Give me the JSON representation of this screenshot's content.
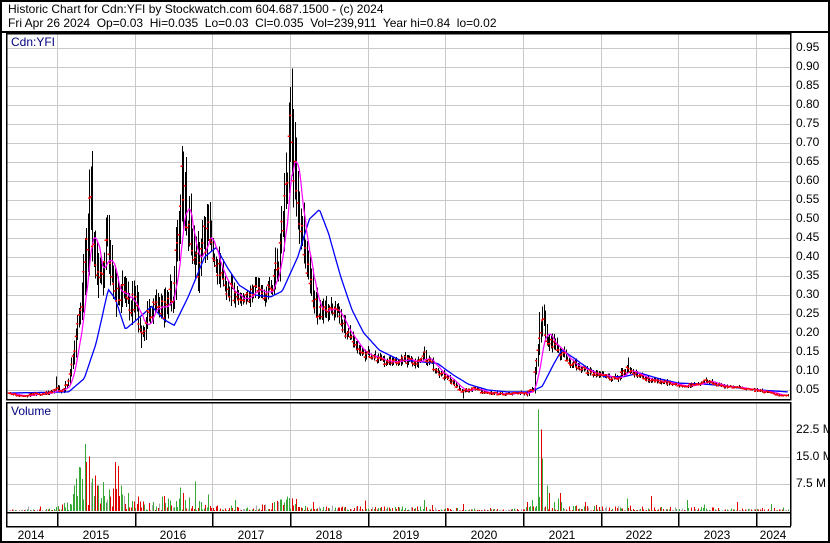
{
  "header": {
    "line1": "Historic Chart for Cdn:YFI by Stockwatch.com 604.687.1500 - (c) 2024",
    "line2": "Fri Apr 26 2024  Op=0.03  Hi=0.035  Lo=0.03  Cl=0.035  Vol=239,911  Year hi=0.84  lo=0.02"
  },
  "price_panel": {
    "label": "Cdn:YFI"
  },
  "volume_panel": {
    "label": "Volume"
  },
  "colors": {
    "grid": "#c9c9c9",
    "bar": "#000000",
    "close_tick": "#ff0000",
    "short_ma": "#ff00ff",
    "long_ma": "#0000ff",
    "vol_up": "#35a835",
    "vol_down": "#e00000",
    "vol_neutral": "#a8a8a8",
    "label": "#000080"
  },
  "chart_data": {
    "type": "candlestick",
    "title": "Historic Chart for Cdn:YFI",
    "symbol": "Cdn:YFI",
    "ohlc_summary": {
      "date": "Fri Apr 26 2024",
      "open": 0.03,
      "high": 0.035,
      "low": 0.03,
      "close": 0.035,
      "volume": "239,911",
      "year_hi": 0.84,
      "year_lo": 0.02
    },
    "x_axis": {
      "labels": [
        "2014",
        "2015",
        "2016",
        "2017",
        "2018",
        "2019",
        "2020",
        "2021",
        "2022",
        "2023",
        "2024"
      ],
      "range": [
        2014.37,
        2024.42
      ]
    },
    "price_axis": {
      "tick_values": [
        0.95,
        0.9,
        0.85,
        0.8,
        0.75,
        0.7,
        0.65,
        0.6,
        0.55,
        0.5,
        0.45,
        0.4,
        0.35,
        0.3,
        0.25,
        0.2,
        0.15,
        0.1,
        0.05
      ],
      "tick_labels": [
        "0.95",
        "0.90",
        "0.85",
        "0.80",
        "0.75",
        "0.70",
        "0.65",
        "0.60",
        "0.55",
        "0.50",
        "0.45",
        "0.40",
        "0.35",
        "0.30",
        "0.25",
        "0.20",
        "0.15",
        "0.10",
        "0.05"
      ]
    },
    "volume_axis": {
      "tick_values": [
        22.5,
        15.0,
        7.5
      ],
      "tick_labels": [
        "22.5 M",
        "15.0 M",
        "7.5 M"
      ],
      "unit": "millions of shares"
    },
    "close_keypoints": [
      [
        2014.37,
        0.04
      ],
      [
        2014.55,
        0.035
      ],
      [
        2014.75,
        0.04
      ],
      [
        2014.9,
        0.042
      ],
      [
        2014.99,
        0.055
      ],
      [
        2015.06,
        0.047
      ],
      [
        2015.14,
        0.065
      ],
      [
        2015.19,
        0.13
      ],
      [
        2015.24,
        0.2
      ],
      [
        2015.3,
        0.27
      ],
      [
        2015.35,
        0.33
      ],
      [
        2015.4,
        0.45
      ],
      [
        2015.42,
        0.58
      ],
      [
        2015.46,
        0.42
      ],
      [
        2015.51,
        0.35
      ],
      [
        2015.58,
        0.4
      ],
      [
        2015.63,
        0.42
      ],
      [
        2015.71,
        0.32
      ],
      [
        2015.79,
        0.28
      ],
      [
        2015.86,
        0.3
      ],
      [
        2015.94,
        0.27
      ],
      [
        2016.0,
        0.28
      ],
      [
        2016.09,
        0.2
      ],
      [
        2016.2,
        0.26
      ],
      [
        2016.29,
        0.28
      ],
      [
        2016.39,
        0.26
      ],
      [
        2016.48,
        0.3
      ],
      [
        2016.55,
        0.42
      ],
      [
        2016.58,
        0.55
      ],
      [
        2016.62,
        0.6
      ],
      [
        2016.67,
        0.5
      ],
      [
        2016.74,
        0.44
      ],
      [
        2016.82,
        0.38
      ],
      [
        2016.89,
        0.44
      ],
      [
        2016.96,
        0.46
      ],
      [
        2017.02,
        0.4
      ],
      [
        2017.1,
        0.35
      ],
      [
        2017.19,
        0.32
      ],
      [
        2017.29,
        0.3
      ],
      [
        2017.41,
        0.29
      ],
      [
        2017.54,
        0.31
      ],
      [
        2017.67,
        0.3
      ],
      [
        2017.77,
        0.33
      ],
      [
        2017.85,
        0.38
      ],
      [
        2017.91,
        0.5
      ],
      [
        2017.96,
        0.65
      ],
      [
        2018.0,
        0.7
      ],
      [
        2018.05,
        0.63
      ],
      [
        2018.1,
        0.55
      ],
      [
        2018.15,
        0.48
      ],
      [
        2018.22,
        0.38
      ],
      [
        2018.28,
        0.31
      ],
      [
        2018.35,
        0.26
      ],
      [
        2018.44,
        0.25
      ],
      [
        2018.58,
        0.26
      ],
      [
        2018.73,
        0.2
      ],
      [
        2018.93,
        0.15
      ],
      [
        2019.12,
        0.13
      ],
      [
        2019.31,
        0.12
      ],
      [
        2019.51,
        0.13
      ],
      [
        2019.64,
        0.12
      ],
      [
        2019.73,
        0.14
      ],
      [
        2019.89,
        0.1
      ],
      [
        2020.09,
        0.07
      ],
      [
        2020.22,
        0.045
      ],
      [
        2020.34,
        0.055
      ],
      [
        2020.47,
        0.045
      ],
      [
        2020.67,
        0.04
      ],
      [
        2020.86,
        0.04
      ],
      [
        2021.05,
        0.04
      ],
      [
        2021.13,
        0.05
      ],
      [
        2021.18,
        0.15
      ],
      [
        2021.22,
        0.21
      ],
      [
        2021.26,
        0.22
      ],
      [
        2021.31,
        0.19
      ],
      [
        2021.37,
        0.17
      ],
      [
        2021.48,
        0.15
      ],
      [
        2021.63,
        0.12
      ],
      [
        2021.82,
        0.1
      ],
      [
        2022.02,
        0.085
      ],
      [
        2022.21,
        0.08
      ],
      [
        2022.33,
        0.105
      ],
      [
        2022.4,
        0.1
      ],
      [
        2022.47,
        0.09
      ],
      [
        2022.66,
        0.075
      ],
      [
        2022.85,
        0.07
      ],
      [
        2023.05,
        0.06
      ],
      [
        2023.24,
        0.065
      ],
      [
        2023.37,
        0.075
      ],
      [
        2023.56,
        0.06
      ],
      [
        2023.75,
        0.055
      ],
      [
        2023.95,
        0.05
      ],
      [
        2024.14,
        0.045
      ],
      [
        2024.32,
        0.035
      ],
      [
        2024.42,
        0.035
      ]
    ],
    "high_wicks": [
      [
        2014.99,
        0.085
      ],
      [
        2015.42,
        0.63
      ],
      [
        2015.63,
        0.47
      ],
      [
        2016.62,
        0.655
      ],
      [
        2016.96,
        0.52
      ],
      [
        2018.0,
        0.845
      ],
      [
        2018.05,
        0.79
      ],
      [
        2019.73,
        0.165
      ],
      [
        2021.2,
        0.255
      ],
      [
        2021.24,
        0.27
      ],
      [
        2022.35,
        0.135
      ]
    ],
    "low_wicks": [
      [
        2020.23,
        0.02
      ],
      [
        2016.09,
        0.16
      ]
    ],
    "volatility_keypoints": [
      [
        2014.4,
        0.1
      ],
      [
        2014.97,
        0.16
      ],
      [
        2015.15,
        0.22
      ],
      [
        2015.35,
        0.3
      ],
      [
        2015.6,
        0.25
      ],
      [
        2015.9,
        0.18
      ],
      [
        2016.2,
        0.15
      ],
      [
        2016.6,
        0.22
      ],
      [
        2016.95,
        0.16
      ],
      [
        2017.3,
        0.1
      ],
      [
        2017.7,
        0.1
      ],
      [
        2018.0,
        0.2
      ],
      [
        2018.3,
        0.14
      ],
      [
        2018.8,
        0.12
      ],
      [
        2019.5,
        0.13
      ],
      [
        2020.3,
        0.14
      ],
      [
        2020.8,
        0.1
      ],
      [
        2021.2,
        0.22
      ],
      [
        2021.6,
        0.12
      ],
      [
        2022.3,
        0.13
      ],
      [
        2023.0,
        0.1
      ],
      [
        2024.0,
        0.1
      ],
      [
        2024.42,
        0.1
      ]
    ],
    "blue_ma_keypoints": [
      [
        2014.37,
        0.042
      ],
      [
        2015.15,
        0.045
      ],
      [
        2015.35,
        0.08
      ],
      [
        2015.5,
        0.17
      ],
      [
        2015.6,
        0.26
      ],
      [
        2015.66,
        0.315
      ],
      [
        2015.75,
        0.29
      ],
      [
        2015.88,
        0.21
      ],
      [
        2016.0,
        0.23
      ],
      [
        2016.22,
        0.27
      ],
      [
        2016.38,
        0.235
      ],
      [
        2016.51,
        0.22
      ],
      [
        2016.7,
        0.3
      ],
      [
        2016.9,
        0.4
      ],
      [
        2017.05,
        0.425
      ],
      [
        2017.2,
        0.37
      ],
      [
        2017.35,
        0.325
      ],
      [
        2017.55,
        0.3
      ],
      [
        2017.75,
        0.295
      ],
      [
        2017.9,
        0.31
      ],
      [
        2018.1,
        0.4
      ],
      [
        2018.25,
        0.5
      ],
      [
        2018.38,
        0.525
      ],
      [
        2018.5,
        0.46
      ],
      [
        2018.65,
        0.35
      ],
      [
        2018.8,
        0.26
      ],
      [
        2018.95,
        0.2
      ],
      [
        2019.15,
        0.155
      ],
      [
        2019.4,
        0.13
      ],
      [
        2019.65,
        0.125
      ],
      [
        2019.9,
        0.12
      ],
      [
        2020.1,
        0.09
      ],
      [
        2020.3,
        0.065
      ],
      [
        2020.55,
        0.05
      ],
      [
        2020.8,
        0.045
      ],
      [
        2021.1,
        0.045
      ],
      [
        2021.25,
        0.06
      ],
      [
        2021.4,
        0.12
      ],
      [
        2021.5,
        0.155
      ],
      [
        2021.65,
        0.135
      ],
      [
        2021.85,
        0.105
      ],
      [
        2022.05,
        0.085
      ],
      [
        2022.3,
        0.085
      ],
      [
        2022.5,
        0.095
      ],
      [
        2022.75,
        0.08
      ],
      [
        2023.0,
        0.068
      ],
      [
        2023.3,
        0.066
      ],
      [
        2023.55,
        0.062
      ],
      [
        2023.8,
        0.055
      ],
      [
        2024.05,
        0.05
      ],
      [
        2024.42,
        0.045
      ]
    ],
    "volume_base_keypoints": [
      [
        2014.4,
        0.3
      ],
      [
        2014.95,
        0.5
      ],
      [
        2015.1,
        1.5
      ],
      [
        2015.25,
        5
      ],
      [
        2015.42,
        8
      ],
      [
        2015.6,
        5
      ],
      [
        2015.8,
        3.5
      ],
      [
        2016.0,
        2
      ],
      [
        2016.15,
        1.5
      ],
      [
        2016.5,
        2.5
      ],
      [
        2016.65,
        3
      ],
      [
        2016.9,
        1.5
      ],
      [
        2017.2,
        1
      ],
      [
        2017.5,
        1
      ],
      [
        2017.9,
        2
      ],
      [
        2018.05,
        2.2
      ],
      [
        2018.3,
        1.2
      ],
      [
        2018.7,
        0.8
      ],
      [
        2019.2,
        0.8
      ],
      [
        2019.6,
        0.9
      ],
      [
        2020.0,
        0.6
      ],
      [
        2020.5,
        0.5
      ],
      [
        2021.0,
        0.4
      ],
      [
        2021.2,
        3
      ],
      [
        2021.35,
        2
      ],
      [
        2021.6,
        1.2
      ],
      [
        2022.0,
        0.8
      ],
      [
        2022.4,
        1.0
      ],
      [
        2022.8,
        0.7
      ],
      [
        2023.3,
        0.7
      ],
      [
        2023.8,
        0.6
      ],
      [
        2024.3,
        0.7
      ]
    ],
    "volume_spikes": [
      [
        2015.24,
        9,
        "g"
      ],
      [
        2015.3,
        12,
        "g"
      ],
      [
        2015.35,
        18.5,
        "g"
      ],
      [
        2015.38,
        13.5,
        "r"
      ],
      [
        2015.42,
        15,
        "r"
      ],
      [
        2015.46,
        9,
        "g"
      ],
      [
        2015.52,
        7,
        "r"
      ],
      [
        2015.58,
        8,
        "g"
      ],
      [
        2015.66,
        6,
        "g"
      ],
      [
        2015.74,
        13.5,
        "r"
      ],
      [
        2015.78,
        12.5,
        "r"
      ],
      [
        2015.82,
        7,
        "g"
      ],
      [
        2015.92,
        5,
        "g"
      ],
      [
        2016.05,
        4,
        "r"
      ],
      [
        2016.35,
        4,
        "g"
      ],
      [
        2016.58,
        6.5,
        "g"
      ],
      [
        2016.63,
        5,
        "r"
      ],
      [
        2016.95,
        4.5,
        "g"
      ],
      [
        2017.3,
        3,
        "g"
      ],
      [
        2017.96,
        4,
        "g"
      ],
      [
        2018.02,
        3.5,
        "r"
      ],
      [
        2018.3,
        2.5,
        "r"
      ],
      [
        2019.73,
        3,
        "g"
      ],
      [
        2020.23,
        2,
        "r"
      ],
      [
        2021.19,
        28,
        "g"
      ],
      [
        2021.22,
        22.5,
        "r"
      ],
      [
        2021.25,
        14.5,
        "g"
      ],
      [
        2021.3,
        7,
        "g"
      ],
      [
        2021.35,
        5,
        "r"
      ],
      [
        2021.45,
        3.5,
        "g"
      ],
      [
        2022.34,
        3.5,
        "g"
      ],
      [
        2022.64,
        4.2,
        "r"
      ],
      [
        2023.1,
        3,
        "g"
      ],
      [
        2023.75,
        2.5,
        "r"
      ],
      [
        2024.2,
        2,
        "g"
      ]
    ]
  }
}
